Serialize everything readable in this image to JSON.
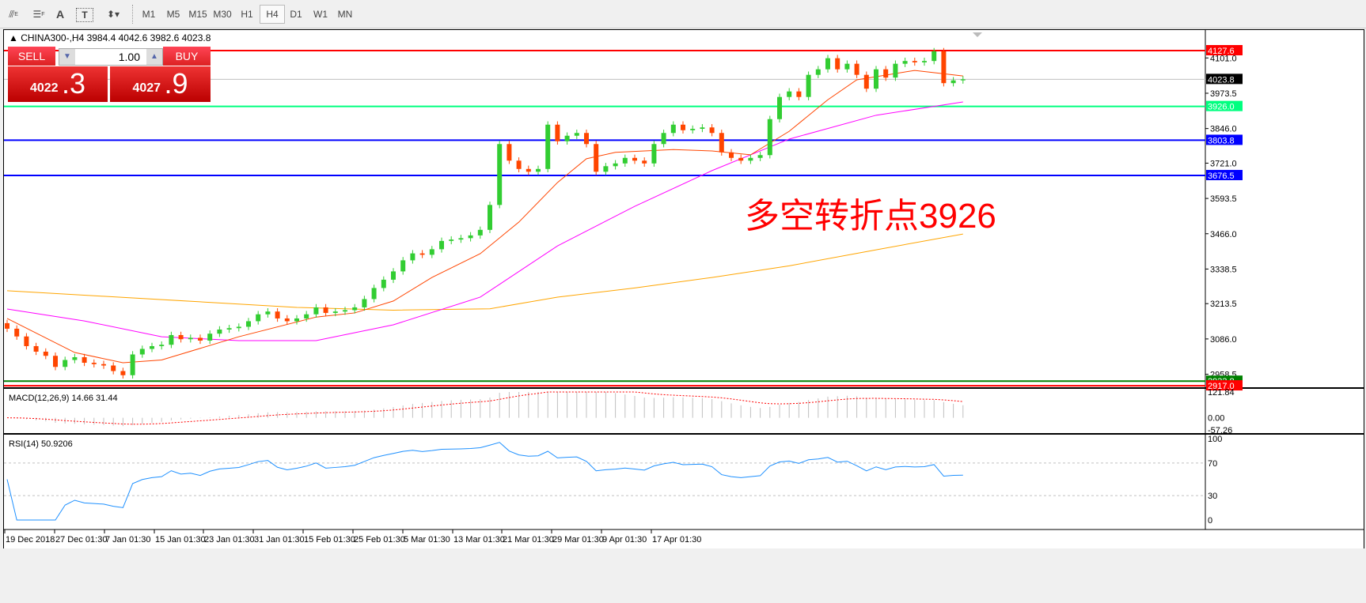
{
  "toolbar": {
    "tools": [
      {
        "icon": "fibonacci-expansion-icon"
      },
      {
        "icon": "fibonacci-grid-icon"
      },
      {
        "icon": "text-icon",
        "label": "A"
      },
      {
        "icon": "text-label-icon",
        "label": "T"
      },
      {
        "icon": "arrows-dropdown-icon"
      }
    ],
    "timeframes": [
      "M1",
      "M5",
      "M15",
      "M30",
      "H1",
      "H4",
      "D1",
      "W1",
      "MN"
    ],
    "active_timeframe": "H4"
  },
  "chart": {
    "header": "CHINA300-,H4  3984.4 4042.6 3982.6 4023.8",
    "annotation": "多空转折点3926",
    "annotation_color": "#ff0000"
  },
  "trade_panel": {
    "sell_label": "SELL",
    "buy_label": "BUY",
    "lot": "1.00",
    "sell_main": "4022",
    "sell_frac": ".3",
    "buy_main": "4027",
    "buy_frac": ".9"
  },
  "price_axis": {
    "ticks": [
      "4101.0",
      "3973.5",
      "3846.0",
      "3721.0",
      "3593.5",
      "3466.0",
      "3338.5",
      "3213.5",
      "3086.0",
      "2958.5"
    ]
  },
  "levels": [
    {
      "value": 4127.6,
      "label": "4127.6",
      "color": "#ff0000"
    },
    {
      "value": 4023.8,
      "label": "4023.8",
      "color": "#000000",
      "line": "#c0c0c0"
    },
    {
      "value": 3926.0,
      "label": "3926.0",
      "color": "#00ff7f"
    },
    {
      "value": 3803.8,
      "label": "3803.8",
      "color": "#0000ff"
    },
    {
      "value": 3676.5,
      "label": "3676.5",
      "color": "#0000ff"
    },
    {
      "value": 2933.8,
      "label": "2933.8",
      "color": "#008000"
    },
    {
      "value": 2917.0,
      "label": "2917.0",
      "color": "#ff0000"
    }
  ],
  "chart_data": {
    "type": "candlestick",
    "symbol": "CHINA300-",
    "timeframe": "H4",
    "closes": [
      3123,
      3095,
      3060,
      3040,
      3025,
      2985,
      3010,
      3020,
      3000,
      2995,
      2990,
      2970,
      2955,
      3030,
      3050,
      3060,
      3065,
      3100,
      3085,
      3090,
      3080,
      3105,
      3120,
      3125,
      3130,
      3150,
      3175,
      3185,
      3160,
      3150,
      3160,
      3175,
      3200,
      3180,
      3185,
      3190,
      3200,
      3230,
      3270,
      3300,
      3330,
      3370,
      3395,
      3390,
      3410,
      3440,
      3445,
      3450,
      3460,
      3480,
      3570,
      3790,
      3730,
      3700,
      3690,
      3700,
      3860,
      3800,
      3820,
      3830,
      3790,
      3690,
      3710,
      3720,
      3740,
      3730,
      3720,
      3790,
      3830,
      3860,
      3840,
      3845,
      3850,
      3830,
      3760,
      3740,
      3730,
      3740,
      3750,
      3880,
      3960,
      3980,
      3960,
      4040,
      4060,
      4100,
      4060,
      4080,
      4040,
      3990,
      4060,
      4030,
      4080,
      4090,
      4085,
      4090,
      4125,
      4010,
      4020,
      4023.8
    ],
    "ma_fast": [
      [
        0,
        3160
      ],
      [
        7,
        3037
      ],
      [
        12,
        3000
      ],
      [
        16,
        3010
      ],
      [
        24,
        3094
      ],
      [
        32,
        3165
      ],
      [
        36,
        3180
      ],
      [
        40,
        3223
      ],
      [
        44,
        3308
      ],
      [
        49,
        3394
      ],
      [
        53,
        3508
      ],
      [
        57,
        3651
      ],
      [
        60,
        3737
      ],
      [
        63,
        3760
      ],
      [
        69,
        3770
      ],
      [
        73,
        3765
      ],
      [
        77,
        3751
      ],
      [
        81,
        3836
      ],
      [
        85,
        3950
      ],
      [
        88,
        4022
      ],
      [
        94,
        4056
      ],
      [
        99,
        4036
      ]
    ],
    "ma_mid": [
      [
        0,
        3194
      ],
      [
        8,
        3151
      ],
      [
        16,
        3094
      ],
      [
        24,
        3080
      ],
      [
        32,
        3080
      ],
      [
        40,
        3137
      ],
      [
        49,
        3237
      ],
      [
        57,
        3422
      ],
      [
        65,
        3565
      ],
      [
        73,
        3694
      ],
      [
        81,
        3808
      ],
      [
        90,
        3894
      ],
      [
        99,
        3942
      ]
    ],
    "ma_slow": [
      [
        0,
        3260
      ],
      [
        10,
        3240
      ],
      [
        20,
        3220
      ],
      [
        30,
        3200
      ],
      [
        40,
        3190
      ],
      [
        50,
        3195
      ],
      [
        57,
        3237
      ],
      [
        65,
        3270
      ],
      [
        73,
        3308
      ],
      [
        81,
        3350
      ],
      [
        90,
        3408
      ],
      [
        99,
        3465
      ]
    ],
    "colors": {
      "up": "#32cd32",
      "down": "#ff4500",
      "ma_fast": "#ff4500",
      "ma_mid": "#ff00ff",
      "ma_slow": "#ffa500"
    },
    "ylim": [
      2900,
      4160
    ]
  },
  "macd": {
    "label": "MACD(12,26,9) 14.66 31.44",
    "ticks": [
      "121.84",
      "0.00",
      "-57.26"
    ],
    "range": [
      -57.26,
      121.84
    ]
  },
  "rsi": {
    "label": "RSI(14) 50.9206",
    "ticks": [
      "100",
      "70",
      "30",
      "0"
    ],
    "levels": [
      70,
      30
    ]
  },
  "time_axis": {
    "labels": [
      "19 Dec 2018",
      "27 Dec 01:30",
      "7 Jan 01:30",
      "15 Jan 01:30",
      "23 Jan 01:30",
      "31 Jan 01:30",
      "15 Feb 01:30",
      "25 Feb 01:30",
      "5 Mar 01:30",
      "13 Mar 01:30",
      "21 Mar 01:30",
      "29 Mar 01:30",
      "9 Apr 01:30",
      "17 Apr 01:30"
    ]
  }
}
